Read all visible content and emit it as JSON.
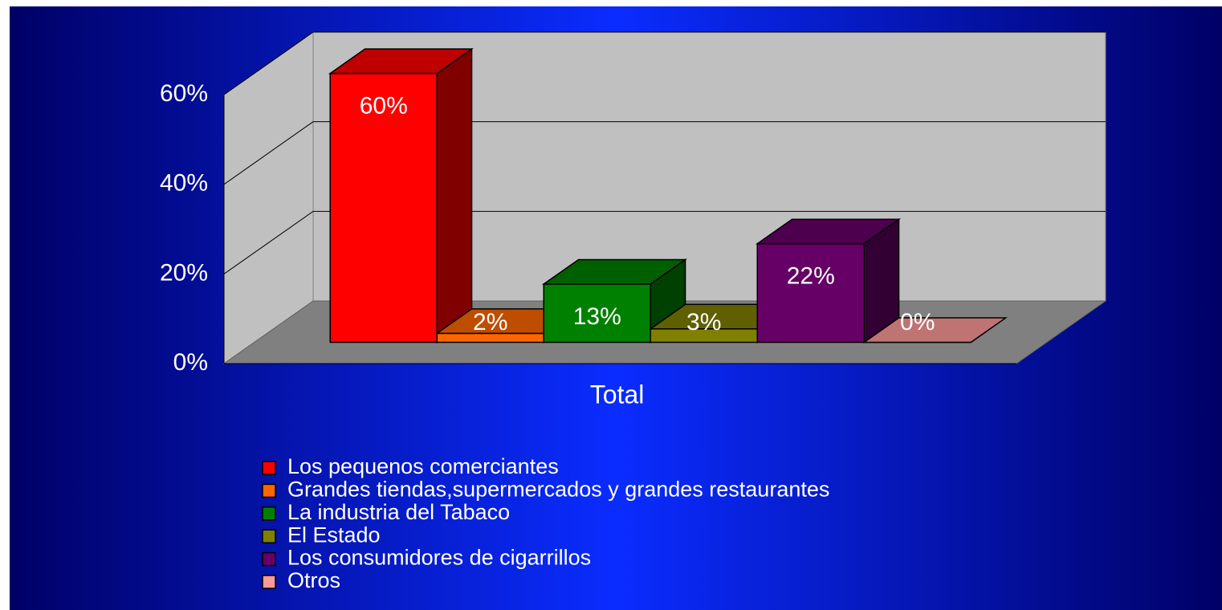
{
  "chart_data": {
    "type": "bar3d",
    "categories": [
      "Total"
    ],
    "series": [
      {
        "name": "Los pequenos comerciantes",
        "color": "#ff0000",
        "values": [
          60
        ],
        "value_labels": [
          "60%"
        ]
      },
      {
        "name": "Grandes tiendas,supermercados y grandes restaurantes",
        "color": "#ff6600",
        "values": [
          2
        ],
        "value_labels": [
          "2%"
        ]
      },
      {
        "name": "La industria del Tabaco",
        "color": "#008000",
        "values": [
          13
        ],
        "value_labels": [
          "13%"
        ]
      },
      {
        "name": "El Estado",
        "color": "#808000",
        "values": [
          3
        ],
        "value_labels": [
          "3%"
        ]
      },
      {
        "name": "Los consumidores de cigarrillos",
        "color": "#660066",
        "values": [
          22
        ],
        "value_labels": [
          "22%"
        ]
      },
      {
        "name": "Otros",
        "color": "#ff9999",
        "values": [
          0
        ],
        "value_labels": [
          "0%"
        ]
      }
    ],
    "ylim": [
      0,
      60
    ],
    "yticks": [
      {
        "value": 0,
        "label": "0%"
      },
      {
        "value": 20,
        "label": "20%"
      },
      {
        "value": 40,
        "label": "40%"
      },
      {
        "value": 60,
        "label": "60%"
      }
    ],
    "grid": true,
    "legend": "bottom"
  }
}
